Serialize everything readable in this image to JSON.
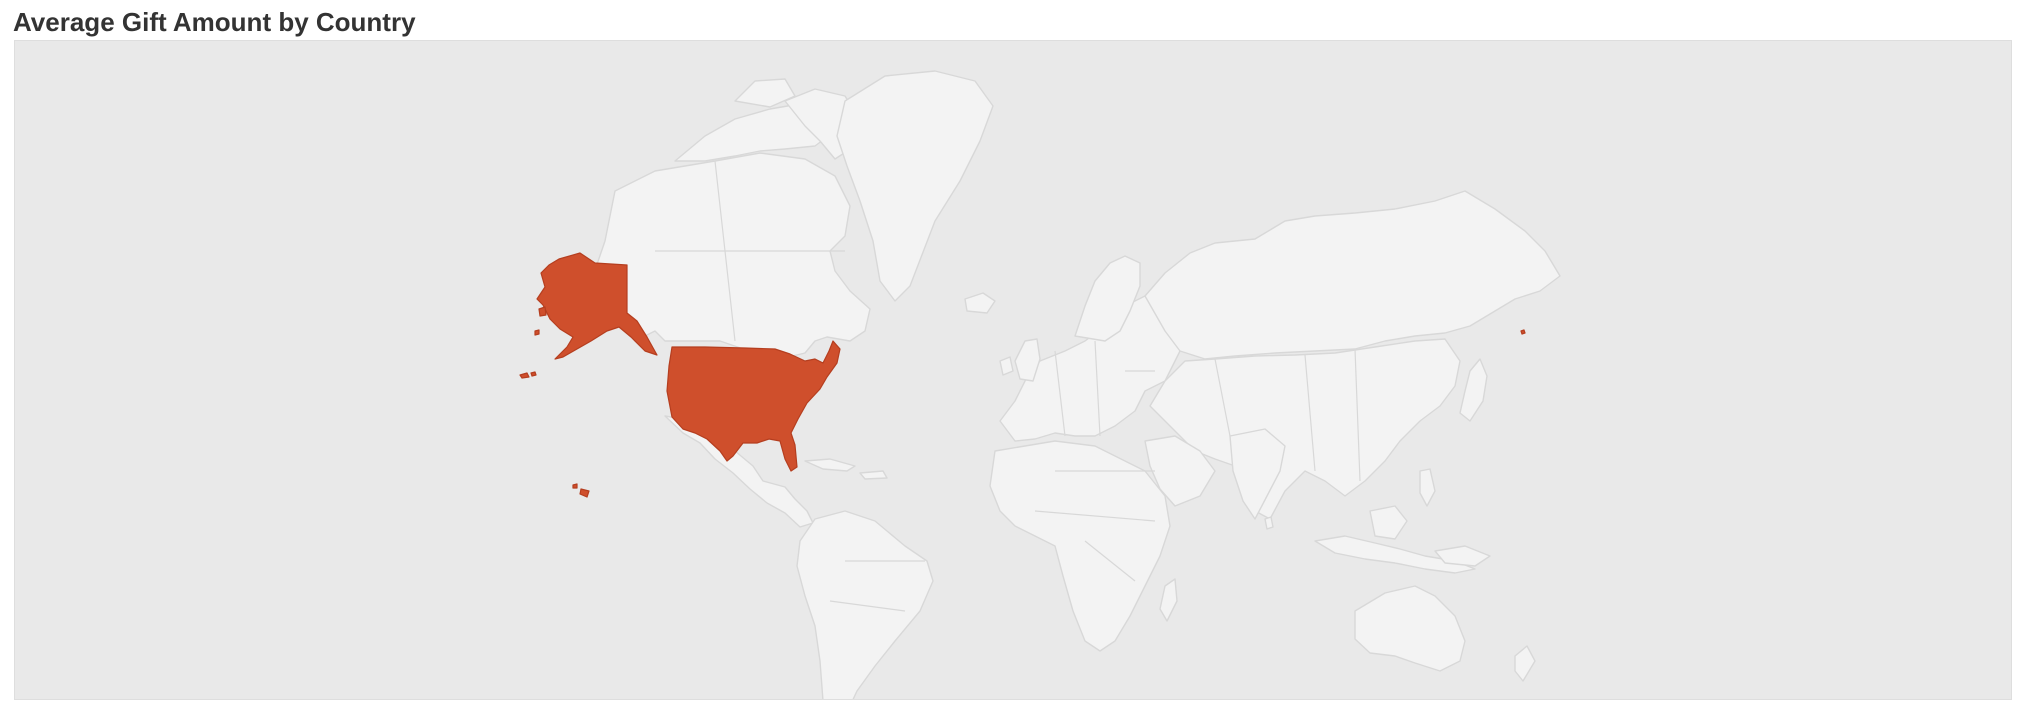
{
  "title": "Average Gift Amount by Country",
  "colors": {
    "highlight": "#cf4f2c",
    "land": "#f3f3f3",
    "ocean": "#e9e9e9",
    "border": "#d8d8d8"
  },
  "map_data": {
    "type": "choropleth",
    "highlighted_regions": [
      {
        "name": "United States",
        "color": "#cf4f2c"
      }
    ]
  }
}
